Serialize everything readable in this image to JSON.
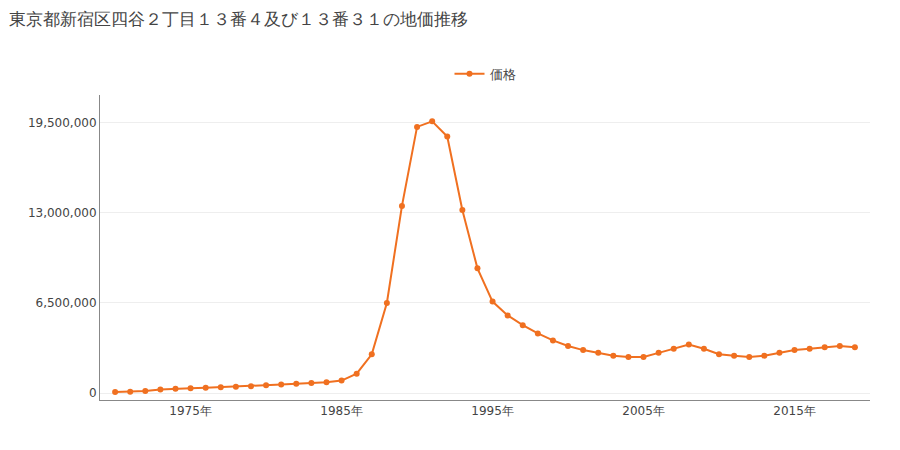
{
  "chart_data": {
    "type": "line",
    "title": "東京都新宿区四谷２丁目１３番４及び１３番３１の地価推移",
    "x": [
      1970,
      1971,
      1972,
      1973,
      1974,
      1975,
      1976,
      1977,
      1978,
      1979,
      1980,
      1981,
      1982,
      1983,
      1984,
      1985,
      1986,
      1987,
      1988,
      1989,
      1990,
      1991,
      1992,
      1993,
      1994,
      1995,
      1996,
      1997,
      1998,
      1999,
      2000,
      2001,
      2002,
      2003,
      2004,
      2005,
      2006,
      2007,
      2008,
      2009,
      2010,
      2011,
      2012,
      2013,
      2014,
      2015,
      2016,
      2017,
      2018,
      2019
    ],
    "series": [
      {
        "name": "価格",
        "color": "#f07020",
        "marker": "circle",
        "values": [
          80000,
          100000,
          150000,
          250000,
          320000,
          350000,
          380000,
          420000,
          460000,
          500000,
          560000,
          620000,
          680000,
          720000,
          780000,
          900000,
          1400000,
          2800000,
          6500000,
          13500000,
          19200000,
          19600000,
          18500000,
          13200000,
          9000000,
          6600000,
          5600000,
          4900000,
          4300000,
          3800000,
          3400000,
          3100000,
          2900000,
          2700000,
          2600000,
          2600000,
          2900000,
          3200000,
          3500000,
          3200000,
          2800000,
          2700000,
          2600000,
          2700000,
          2900000,
          3100000,
          3200000,
          3300000,
          3400000,
          3300000
        ]
      }
    ],
    "xlim": [
      1969,
      2020
    ],
    "xticks": [
      {
        "value": 1975,
        "label": "1975年"
      },
      {
        "value": 1985,
        "label": "1985年"
      },
      {
        "value": 1995,
        "label": "1995年"
      },
      {
        "value": 2005,
        "label": "2005年"
      },
      {
        "value": 2015,
        "label": "2015年"
      }
    ],
    "ylim": [
      -500000,
      21500000
    ],
    "yticks": [
      0,
      {
        "value": 6500000,
        "label": "6,500,000"
      },
      {
        "value": 13000000,
        "label": "13,000,000"
      },
      {
        "value": 19500000,
        "label": "19,500,000"
      }
    ],
    "grid": "y",
    "legend": "top"
  }
}
